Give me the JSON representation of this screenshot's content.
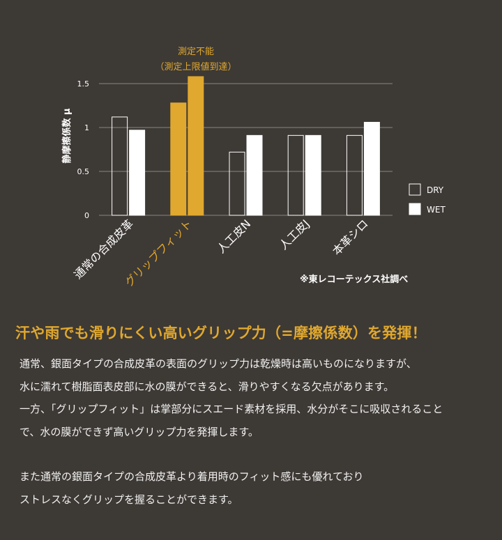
{
  "colors": {
    "background": "#3d3935",
    "accent": "#e0a82e",
    "bar_white": "#ffffff",
    "grid": "#8a8580"
  },
  "chart_data": {
    "type": "bar",
    "ylabel": "静摩擦係数 μ",
    "ylim": [
      0,
      1.5
    ],
    "yticks": [
      "1.5",
      "1",
      "0.5",
      "0"
    ],
    "categories": [
      "通常の合成皮革",
      "グリップフィット",
      "人工皮N",
      "人工皮J",
      "本革シロ"
    ],
    "highlight_category": "グリップフィット",
    "series": [
      {
        "name": "DRY",
        "values": [
          1.12,
          1.28,
          0.72,
          0.91,
          0.91
        ]
      },
      {
        "name": "WET",
        "values": [
          0.97,
          1.58,
          0.91,
          0.91,
          1.06
        ]
      }
    ],
    "annotation": [
      "測定不能",
      "（測定上限値到達）"
    ],
    "legend_position": "right",
    "note": "※東レコーテックス社調べ"
  },
  "headline": "汗や雨でも滑りにくい高いグリップ力（=摩擦係数）を発揮！",
  "paragraphs": [
    {
      "lines": [
        "通常、銀面タイプの合成皮革の表面のグリップ力は乾燥時は高いものになりますが、",
        "水に濡れて樹脂面表皮部に水の膜ができると、滑りやすくなる欠点があります。",
        "一方、「グリップフィット」は掌部分にスエード素材を採用、水分がそこに吸収されること",
        "で、水の膜ができず高いグリップ力を発揮します。"
      ]
    },
    {
      "lines": [
        "また通常の銀面タイプの合成皮革より着用時のフィット感にも優れており",
        "ストレスなくグリップを握ることができます。"
      ]
    }
  ]
}
